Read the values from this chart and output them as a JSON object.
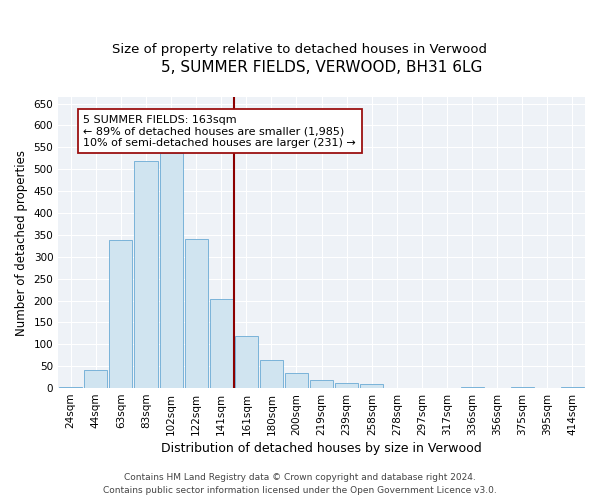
{
  "title": "5, SUMMER FIELDS, VERWOOD, BH31 6LG",
  "subtitle": "Size of property relative to detached houses in Verwood",
  "xlabel": "Distribution of detached houses by size in Verwood",
  "ylabel": "Number of detached properties",
  "categories": [
    "24sqm",
    "44sqm",
    "63sqm",
    "83sqm",
    "102sqm",
    "122sqm",
    "141sqm",
    "161sqm",
    "180sqm",
    "200sqm",
    "219sqm",
    "239sqm",
    "258sqm",
    "278sqm",
    "297sqm",
    "317sqm",
    "336sqm",
    "356sqm",
    "375sqm",
    "395sqm",
    "414sqm"
  ],
  "values": [
    3,
    42,
    338,
    519,
    537,
    341,
    203,
    119,
    65,
    35,
    18,
    12,
    10,
    0,
    0,
    0,
    3,
    0,
    2,
    0,
    2
  ],
  "bar_color": "#d0e4f0",
  "bar_edge_color": "#6aaad4",
  "vline_color": "#8b0000",
  "annotation_text": "5 SUMMER FIELDS: 163sqm\n← 89% of detached houses are smaller (1,985)\n10% of semi-detached houses are larger (231) →",
  "annotation_box_color": "#ffffff",
  "annotation_box_edge_color": "#9b1111",
  "ylim": [
    0,
    665
  ],
  "yticks": [
    0,
    50,
    100,
    150,
    200,
    250,
    300,
    350,
    400,
    450,
    500,
    550,
    600,
    650
  ],
  "footer_line1": "Contains HM Land Registry data © Crown copyright and database right 2024.",
  "footer_line2": "Contains public sector information licensed under the Open Government Licence v3.0.",
  "background_color": "#eef2f7",
  "title_fontsize": 11,
  "subtitle_fontsize": 9.5,
  "xlabel_fontsize": 9,
  "ylabel_fontsize": 8.5,
  "tick_fontsize": 7.5,
  "annotation_fontsize": 8,
  "footer_fontsize": 6.5
}
